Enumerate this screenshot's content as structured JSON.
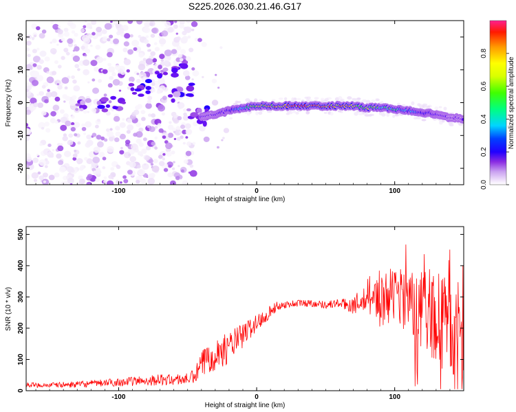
{
  "title": "S225.2026.030.21.46.G17",
  "chart_data": [
    {
      "type": "heatmap",
      "xlabel": "Height of straight line (km)",
      "ylabel": "Frequency (Hz)",
      "xlim": [
        -167,
        150
      ],
      "ylim": [
        -25,
        25
      ],
      "xticks": [
        -100,
        0,
        100
      ],
      "yticks": [
        -20,
        -10,
        0,
        10,
        20
      ],
      "colorbar": {
        "label": "Normalized spectral amplitude",
        "range": [
          0.0,
          1.0
        ],
        "ticks": [
          0.0,
          0.2,
          0.4,
          0.6,
          0.8
        ],
        "tick_labels": [
          "0.0",
          "0.2",
          "0.4",
          "0.6",
          "0.8"
        ],
        "colormap": [
          "#ffffff",
          "#e9d8f7",
          "#8a2be2",
          "#4b00ff",
          "#0000ff",
          "#00ffff",
          "#00ff00",
          "#ffff00",
          "#ff7f00",
          "#ff0000"
        ]
      },
      "ridge": [
        {
          "x": -40,
          "y": -4.5,
          "a": 0.35
        },
        {
          "x": -30,
          "y": -3.5,
          "a": 0.3
        },
        {
          "x": -20,
          "y": -2.5,
          "a": 0.4
        },
        {
          "x": -10,
          "y": -1.5,
          "a": 0.6
        },
        {
          "x": 0,
          "y": -1.0,
          "a": 0.8
        },
        {
          "x": 10,
          "y": -1.0,
          "a": 0.85
        },
        {
          "x": 20,
          "y": -1.0,
          "a": 0.95
        },
        {
          "x": 30,
          "y": -1.0,
          "a": 0.98
        },
        {
          "x": 40,
          "y": -1.0,
          "a": 0.98
        },
        {
          "x": 50,
          "y": -1.0,
          "a": 0.95
        },
        {
          "x": 60,
          "y": -1.0,
          "a": 0.9
        },
        {
          "x": 70,
          "y": -1.0,
          "a": 0.85
        },
        {
          "x": 80,
          "y": -1.5,
          "a": 0.75
        },
        {
          "x": 90,
          "y": -1.5,
          "a": 0.7
        },
        {
          "x": 100,
          "y": -2.0,
          "a": 0.65
        },
        {
          "x": 110,
          "y": -2.5,
          "a": 0.55
        },
        {
          "x": 120,
          "y": -3.0,
          "a": 0.45
        },
        {
          "x": 130,
          "y": -3.5,
          "a": 0.35
        },
        {
          "x": 140,
          "y": -4.5,
          "a": 0.3
        },
        {
          "x": 150,
          "y": -5.0,
          "a": 0.3
        }
      ],
      "blobs": [
        {
          "x": -125,
          "y": -1,
          "a": 0.3
        },
        {
          "x": -110,
          "y": -1,
          "a": 0.4
        },
        {
          "x": -100,
          "y": 0,
          "a": 0.35
        },
        {
          "x": -88,
          "y": 4,
          "a": 0.4
        },
        {
          "x": -82,
          "y": 5,
          "a": 0.45
        },
        {
          "x": -70,
          "y": 9,
          "a": 0.35
        },
        {
          "x": -55,
          "y": 10,
          "a": 0.35
        },
        {
          "x": -52,
          "y": 4,
          "a": 0.4
        },
        {
          "x": -60,
          "y": 2,
          "a": 0.3
        },
        {
          "x": -45,
          "y": -3,
          "a": 0.35
        },
        {
          "x": -38,
          "y": -5,
          "a": 0.3
        },
        {
          "x": -35,
          "y": -3,
          "a": 0.45
        }
      ]
    },
    {
      "type": "line",
      "xlabel": "Height of straight line (km)",
      "ylabel": "SNR (10 * v/v)",
      "xlim": [
        -167,
        150
      ],
      "ylim": [
        0,
        525
      ],
      "xticks": [
        -100,
        0,
        100
      ],
      "yticks": [
        0,
        100,
        200,
        300,
        400,
        500
      ],
      "color": "#ff0000",
      "x": [
        -167,
        -150,
        -130,
        -110,
        -90,
        -70,
        -60,
        -50,
        -45,
        -40,
        -35,
        -30,
        -25,
        -20,
        -15,
        -10,
        -5,
        0,
        5,
        10,
        15,
        20,
        30,
        40,
        50,
        60,
        65,
        70,
        80,
        90,
        100,
        110,
        120,
        130,
        140,
        150
      ],
      "y": [
        18,
        18,
        20,
        25,
        30,
        35,
        35,
        38,
        45,
        80,
        110,
        120,
        125,
        140,
        160,
        175,
        200,
        215,
        235,
        255,
        270,
        275,
        280,
        280,
        275,
        280,
        275,
        275,
        290,
        300,
        300,
        280,
        260,
        240,
        200,
        180
      ],
      "noise_amp": [
        8,
        8,
        10,
        12,
        15,
        18,
        18,
        18,
        25,
        45,
        55,
        55,
        50,
        50,
        45,
        40,
        35,
        30,
        25,
        20,
        15,
        12,
        12,
        12,
        12,
        15,
        20,
        30,
        45,
        70,
        100,
        120,
        140,
        150,
        160,
        160
      ]
    }
  ]
}
